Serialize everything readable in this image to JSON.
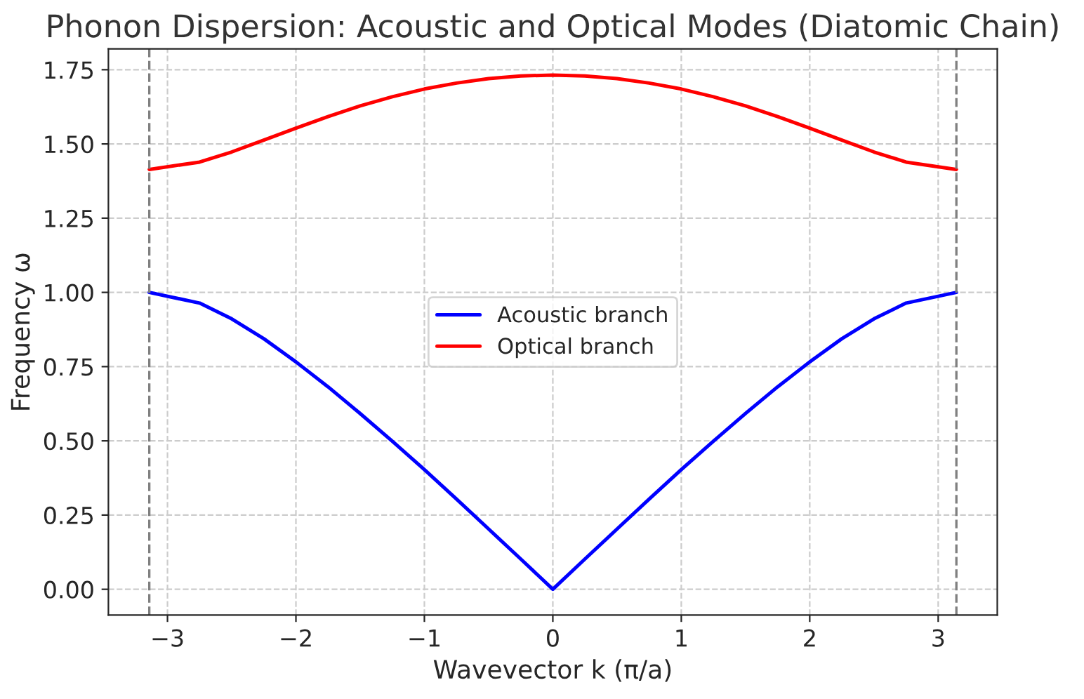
{
  "chart_data": {
    "type": "line",
    "title": "Phonon Dispersion: Acoustic and Optical Modes (Diatomic Chain)",
    "xlabel": "Wavevector k (π/a)",
    "ylabel": "Frequency ω",
    "x": [
      -3.1416,
      -2.75,
      -2.5,
      -2.25,
      -2,
      -1.75,
      -1.5,
      -1.25,
      -1,
      -0.75,
      -0.5,
      -0.25,
      0,
      0.25,
      0.5,
      0.75,
      1,
      1.25,
      1.5,
      1.75,
      2,
      2.25,
      2.5,
      2.75,
      3.1416
    ],
    "series": [
      {
        "name": "Acoustic branch",
        "color": "#0000ff",
        "values": [
          1.0,
          0.964,
          0.911,
          0.844,
          0.766,
          0.682,
          0.592,
          0.499,
          0.403,
          0.304,
          0.203,
          0.102,
          0.0,
          0.102,
          0.203,
          0.304,
          0.403,
          0.499,
          0.592,
          0.682,
          0.766,
          0.844,
          0.911,
          0.964,
          1.0
        ]
      },
      {
        "name": "Optical branch",
        "color": "#ff0000",
        "values": [
          1.414,
          1.439,
          1.473,
          1.513,
          1.553,
          1.592,
          1.628,
          1.659,
          1.685,
          1.705,
          1.72,
          1.729,
          1.732,
          1.729,
          1.72,
          1.705,
          1.685,
          1.659,
          1.628,
          1.592,
          1.553,
          1.513,
          1.473,
          1.439,
          1.414
        ]
      }
    ],
    "xlim": [
      -3.46,
      3.46
    ],
    "ylim": [
      -0.087,
      1.82
    ],
    "xticks": [
      {
        "value": -3,
        "label": "−3"
      },
      {
        "value": -2,
        "label": "−2"
      },
      {
        "value": -1,
        "label": "−1"
      },
      0,
      1,
      2,
      3
    ],
    "yticks": [
      {
        "value": 0,
        "label": "0.00"
      },
      {
        "value": 0.25,
        "label": "0.25"
      },
      {
        "value": 0.5,
        "label": "0.50"
      },
      {
        "value": 0.75,
        "label": "0.75"
      },
      {
        "value": 1,
        "label": "1.00"
      },
      {
        "value": 1.25,
        "label": "1.25"
      },
      {
        "value": 1.5,
        "label": "1.50"
      },
      {
        "value": 1.75,
        "label": "1.75"
      }
    ],
    "ref_lines": [
      {
        "axis": "x",
        "value": -3.1416,
        "color": "#808080",
        "line_style": "dashed"
      },
      {
        "axis": "x",
        "value": 3.1416,
        "color": "#808080",
        "line_style": "dashed"
      }
    ],
    "grid": true,
    "legend": "center",
    "line_style": "solid",
    "marker": "none"
  }
}
